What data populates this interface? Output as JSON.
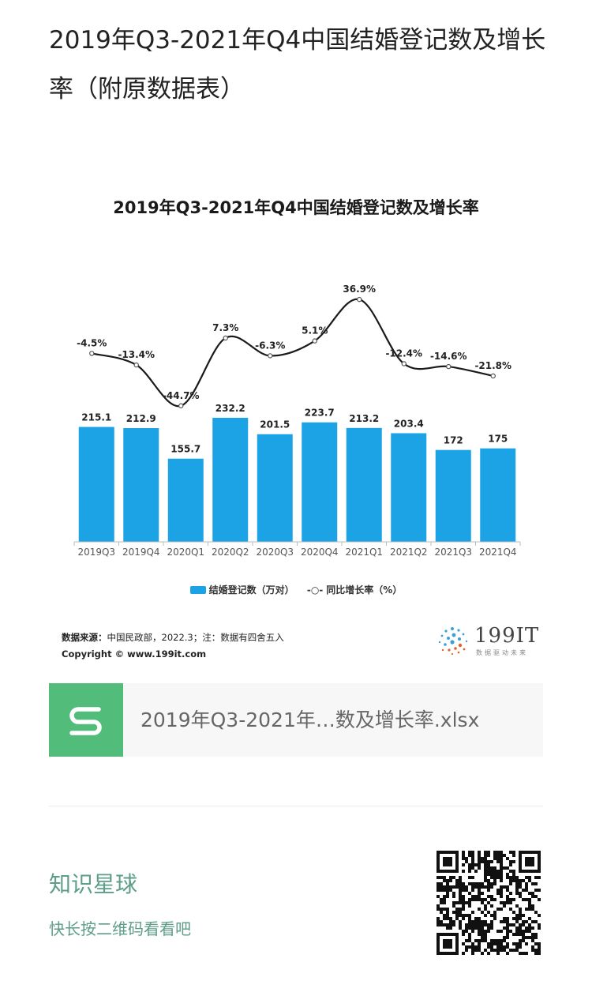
{
  "post": {
    "title": "2019年Q3-2021年Q4中国结婚登记数及增长率（附原数据表）"
  },
  "chart_data": {
    "type": "bar",
    "title": "2019年Q3-2021年Q4中国结婚登记数及增长率",
    "categories": [
      "2019Q3",
      "2019Q4",
      "2020Q1",
      "2020Q2",
      "2020Q3",
      "2020Q4",
      "2021Q1",
      "2021Q2",
      "2021Q3",
      "2021Q4"
    ],
    "series": [
      {
        "name": "结婚登记数（万对）",
        "type": "bar",
        "values": [
          215.1,
          212.9,
          155.7,
          232.2,
          201.5,
          223.7,
          213.2,
          203.4,
          172,
          175
        ],
        "labels": [
          "215.1",
          "212.9",
          "155.7",
          "232.2",
          "201.5",
          "223.7",
          "213.2",
          "203.4",
          "172",
          "175"
        ],
        "color": "#1ba3e6"
      },
      {
        "name": "同比增长率（%）",
        "type": "line",
        "values": [
          -4.5,
          -13.4,
          -44.7,
          7.3,
          -6.3,
          5.1,
          36.9,
          -12.4,
          -14.6,
          -21.8
        ],
        "labels": [
          "-4.5%",
          "-13.4%",
          "-44.7%",
          "7.3%",
          "-6.3%",
          "5.1%",
          "36.9%",
          "-12.4%",
          "-14.6%",
          "-21.8%"
        ],
        "color": "#1a1a1a"
      }
    ],
    "legend": {
      "bar": "结婚登记数（万对）",
      "line_mark": "-○-",
      "line": "同比增长率（%）",
      "position": "bottom"
    },
    "grid": false
  },
  "source": {
    "label": "数据来源：",
    "text": "中国民政部，2022.3；注：数据有四舍五入",
    "copyright": "Copyright © www.199it.com"
  },
  "logo": {
    "name": "199IT",
    "tagline": "数据驱动未来"
  },
  "file": {
    "icon": "spreadsheet-s-icon",
    "name": "2019年Q3-2021年…数及增长率.xlsx"
  },
  "planet": {
    "title": "知识星球",
    "subtitle": "快长按二维码看看吧"
  },
  "colors": {
    "bar": "#1ba3e6",
    "file_icon": "#52bc7a",
    "planet_text": "#5d9e87"
  }
}
